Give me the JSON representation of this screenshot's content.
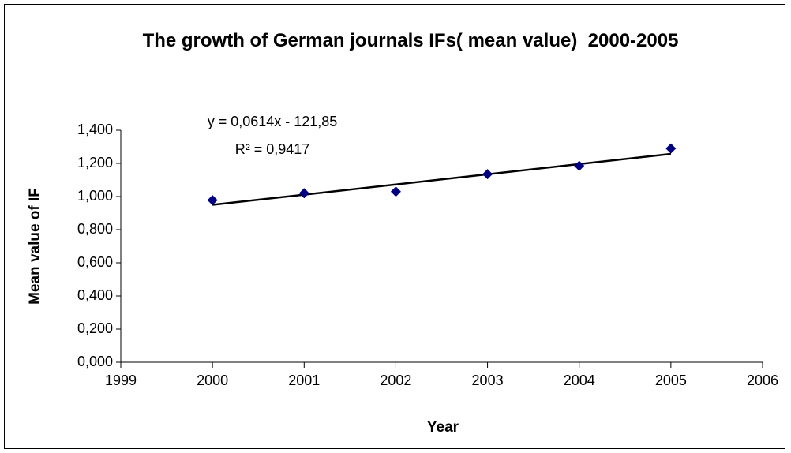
{
  "chart_data": {
    "type": "scatter",
    "title": "The growth of German journals IFs( mean value)  2000-2005",
    "x_label": "Year",
    "y_label": "Mean value of IF",
    "series": [
      {
        "name": "Mean value of IF",
        "color": "#000080",
        "x": [
          2000,
          2001,
          2002,
          2003,
          2004,
          2005
        ],
        "values": [
          0.978,
          1.02,
          1.03,
          1.135,
          1.185,
          1.29
        ]
      }
    ],
    "trendline": {
      "slope": 0.0614,
      "intercept": -121.85,
      "color": "#000000",
      "equation": "y = 0,0614x - 121,85",
      "r2_label": "R² = 0,9417"
    },
    "xlim": [
      1999,
      2006
    ],
    "xticks": [
      1999,
      2000,
      2001,
      2002,
      2003,
      2004,
      2005,
      2006
    ],
    "ylim": [
      0,
      1.4
    ],
    "yticks": [
      {
        "value": 0,
        "label": "0,000"
      },
      {
        "value": 0.2,
        "label": "0,200"
      },
      {
        "value": 0.4,
        "label": "0,400"
      },
      {
        "value": 0.6,
        "label": "0,600"
      },
      {
        "value": 0.8,
        "label": "0,800"
      },
      {
        "value": 1.0,
        "label": "1,000"
      },
      {
        "value": 1.2,
        "label": "1,200"
      },
      {
        "value": 1.4,
        "label": "1,400"
      }
    ],
    "grid": false
  }
}
